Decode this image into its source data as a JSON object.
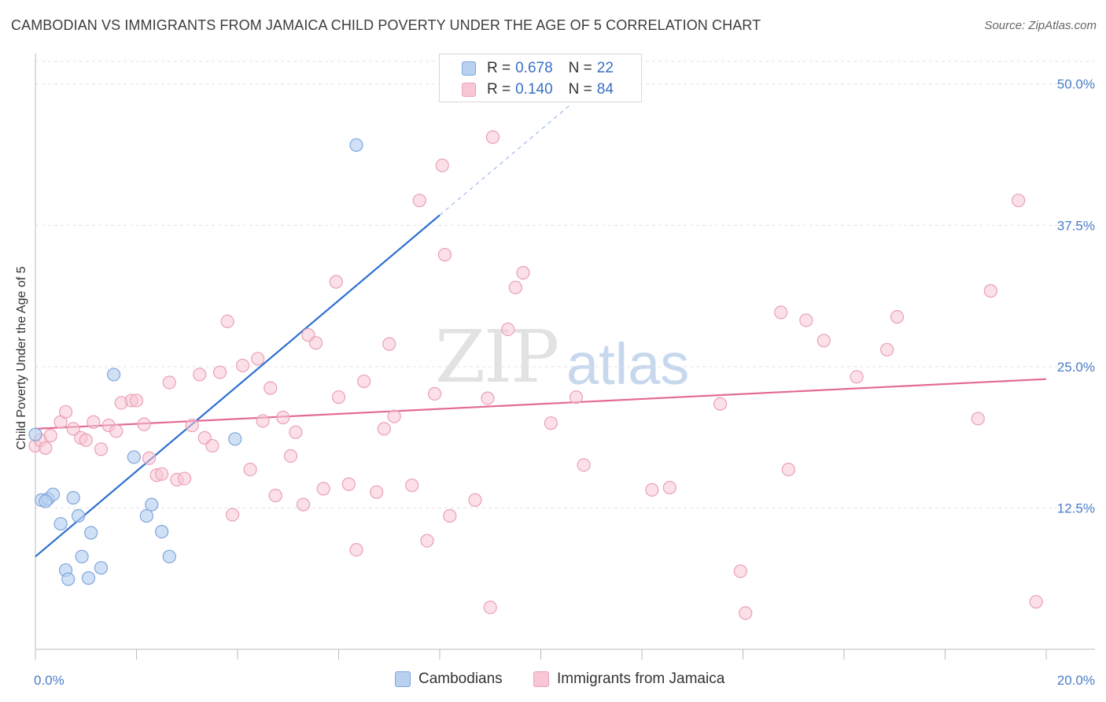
{
  "header": {
    "title": "CAMBODIAN VS IMMIGRANTS FROM JAMAICA CHILD POVERTY UNDER THE AGE OF 5 CORRELATION CHART",
    "source": "Source: ZipAtlas.com"
  },
  "watermark": {
    "zip": "ZIP",
    "atlas": "atlas"
  },
  "legend": {
    "row1": {
      "r_label": "R =",
      "r_value": "0.678",
      "n_label": "N =",
      "n_value": "22"
    },
    "row2": {
      "r_label": "R =",
      "r_value": "0.140",
      "n_label": "N =",
      "n_value": "84"
    }
  },
  "bottom_legend": {
    "series1": "Cambodians",
    "series2": "Immigrants from Jamaica"
  },
  "colors": {
    "blue_fill": "#b8d1f0",
    "blue_stroke": "#7ea6dc",
    "blue_line": "#2d6fd4",
    "pink_fill": "#f8c6d4",
    "pink_stroke": "#eaa0b7",
    "pink_line": "#e26a94",
    "tick_text": "#4a7cc9",
    "grid": "#e3e3e3"
  },
  "chart_data": {
    "type": "scatter",
    "ylabel": "Child Poverty Under the Age of 5",
    "xlabel": "",
    "xlim": [
      0,
      20
    ],
    "ylim": [
      0,
      52
    ],
    "x_tick_labels": [
      "0.0%",
      "20.0%"
    ],
    "y_ticks": [
      12.5,
      25.0,
      37.5,
      50.0
    ],
    "y_tick_labels": [
      "12.5%",
      "25.0%",
      "37.5%",
      "50.0%"
    ],
    "grid": true,
    "series": [
      {
        "name": "Cambodians",
        "r": 0.678,
        "n": 22,
        "trend": {
          "x0": 0,
          "y0": 8.2,
          "x1": 8.0,
          "y1": 38.4,
          "dash_to_x": 10.6
        },
        "points": [
          [
            0.0,
            19.0
          ],
          [
            0.12,
            13.2
          ],
          [
            0.25,
            13.3
          ],
          [
            0.35,
            13.7
          ],
          [
            0.5,
            11.1
          ],
          [
            0.6,
            7.0
          ],
          [
            0.65,
            6.2
          ],
          [
            0.75,
            13.4
          ],
          [
            0.85,
            11.8
          ],
          [
            0.92,
            8.2
          ],
          [
            1.05,
            6.3
          ],
          [
            1.1,
            10.3
          ],
          [
            1.3,
            7.2
          ],
          [
            1.55,
            24.3
          ],
          [
            1.95,
            17.0
          ],
          [
            2.2,
            11.8
          ],
          [
            2.3,
            12.8
          ],
          [
            2.5,
            10.4
          ],
          [
            2.65,
            8.2
          ],
          [
            3.95,
            18.6
          ],
          [
            6.35,
            44.6
          ],
          [
            0.2,
            13.1
          ]
        ]
      },
      {
        "name": "Immigrants from Jamaica",
        "r": 0.14,
        "n": 84,
        "trend": {
          "x0": 0,
          "y0": 19.5,
          "x1": 20,
          "y1": 23.9
        },
        "points": [
          [
            0.0,
            18.0
          ],
          [
            0.1,
            18.5
          ],
          [
            0.2,
            17.8
          ],
          [
            0.3,
            18.9
          ],
          [
            0.5,
            20.1
          ],
          [
            0.6,
            21.0
          ],
          [
            0.75,
            19.5
          ],
          [
            0.9,
            18.7
          ],
          [
            1.0,
            18.5
          ],
          [
            1.15,
            20.1
          ],
          [
            1.3,
            17.7
          ],
          [
            1.45,
            19.8
          ],
          [
            1.6,
            19.3
          ],
          [
            1.7,
            21.8
          ],
          [
            1.9,
            22.0
          ],
          [
            2.0,
            22.0
          ],
          [
            2.15,
            19.9
          ],
          [
            2.25,
            16.9
          ],
          [
            2.4,
            15.4
          ],
          [
            2.5,
            15.5
          ],
          [
            2.65,
            23.6
          ],
          [
            2.8,
            15.0
          ],
          [
            2.95,
            15.1
          ],
          [
            3.1,
            19.8
          ],
          [
            3.25,
            24.3
          ],
          [
            3.35,
            18.7
          ],
          [
            3.5,
            18.0
          ],
          [
            3.65,
            24.5
          ],
          [
            3.8,
            29.0
          ],
          [
            3.9,
            11.9
          ],
          [
            4.1,
            25.1
          ],
          [
            4.25,
            15.9
          ],
          [
            4.4,
            25.7
          ],
          [
            4.5,
            20.2
          ],
          [
            4.65,
            23.1
          ],
          [
            4.75,
            13.6
          ],
          [
            4.9,
            20.5
          ],
          [
            5.05,
            17.1
          ],
          [
            5.15,
            19.2
          ],
          [
            5.3,
            12.8
          ],
          [
            5.4,
            27.8
          ],
          [
            5.55,
            27.1
          ],
          [
            5.7,
            14.2
          ],
          [
            5.95,
            32.5
          ],
          [
            6.0,
            22.3
          ],
          [
            6.2,
            14.6
          ],
          [
            6.35,
            8.8
          ],
          [
            6.5,
            23.7
          ],
          [
            6.75,
            13.9
          ],
          [
            6.9,
            19.5
          ],
          [
            7.0,
            27.0
          ],
          [
            7.1,
            20.6
          ],
          [
            7.45,
            14.5
          ],
          [
            7.6,
            39.7
          ],
          [
            7.75,
            9.6
          ],
          [
            7.9,
            22.6
          ],
          [
            8.05,
            42.8
          ],
          [
            8.1,
            34.9
          ],
          [
            8.2,
            11.8
          ],
          [
            8.7,
            13.2
          ],
          [
            8.95,
            22.2
          ],
          [
            9.05,
            45.3
          ],
          [
            9.0,
            3.7
          ],
          [
            9.35,
            28.3
          ],
          [
            9.5,
            32.0
          ],
          [
            9.65,
            33.3
          ],
          [
            10.2,
            20.0
          ],
          [
            10.7,
            22.3
          ],
          [
            10.85,
            16.3
          ],
          [
            12.2,
            14.1
          ],
          [
            12.55,
            14.3
          ],
          [
            13.55,
            21.7
          ],
          [
            13.95,
            6.9
          ],
          [
            14.05,
            3.2
          ],
          [
            14.75,
            29.8
          ],
          [
            14.9,
            15.9
          ],
          [
            15.25,
            29.1
          ],
          [
            15.6,
            27.3
          ],
          [
            16.25,
            24.1
          ],
          [
            16.85,
            26.5
          ],
          [
            17.05,
            29.4
          ],
          [
            18.65,
            20.4
          ],
          [
            18.9,
            31.7
          ],
          [
            19.45,
            39.7
          ],
          [
            19.8,
            4.2
          ]
        ]
      }
    ]
  }
}
